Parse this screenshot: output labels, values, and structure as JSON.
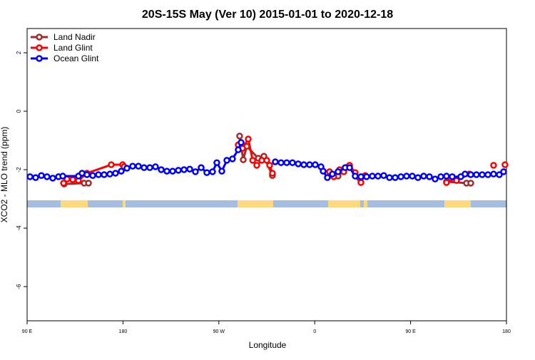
{
  "chart_data": {
    "type": "line",
    "title": "20S-15S May (Ver 10)   2015-01-01 to 2020-12-18",
    "xlabel": "Longitude",
    "ylabel": "XCO2 - MLO trend (ppm)",
    "xlim": [
      90,
      540
    ],
    "xticks": [
      {
        "value": 90,
        "label": "90 E"
      },
      {
        "value": 180,
        "label": "180"
      },
      {
        "value": 270,
        "label": "90 W"
      },
      {
        "value": 360,
        "label": "0"
      },
      {
        "value": 450,
        "label": "90 E"
      },
      {
        "value": 540,
        "label": "180"
      }
    ],
    "ylim": [
      -7.17,
      2.83
    ],
    "yticks": [
      2,
      0,
      -2,
      -4,
      -6
    ],
    "legend": "top-left",
    "series": [
      {
        "name": "Land Nadir",
        "color": "#a52a2a",
        "x": [
          124.8,
          143.6,
          147.6,
          null,
          289.5,
          292.9,
          296.2,
          307.0,
          312.3,
          320.3,
          null,
          381.9,
          391.3,
          402.0,
          null,
          483.7,
          502.5,
          506.5
        ],
        "values": [
          -2.49,
          -2.46,
          -2.46,
          null,
          -0.85,
          -1.66,
          -1.2,
          -1.61,
          -1.54,
          -2.2,
          null,
          -2.22,
          -1.9,
          -2.29,
          null,
          -2.41,
          -2.46,
          -2.46
        ]
      },
      {
        "name": "Land Glint",
        "color": "#ff0000",
        "x": [
          124.2,
          127.5,
          132.9,
          138.2,
          146.2,
          169.0,
          179.7,
          181.0,
          null,
          288.2,
          292.2,
          297.6,
          301.8,
          305.6,
          310.3,
          315.0,
          317.7,
          320.3,
          null,
          373.9,
          377.9,
          383.3,
          387.3,
          392.7,
          398.0,
          403.4,
          407.4,
          null,
          483.7,
          487.7,
          493.1,
          505.2,
          null,
          527.9,
          null,
          538.6
        ],
        "values": [
          -2.46,
          -2.32,
          -2.34,
          -2.37,
          -2.12,
          -1.83,
          -1.83,
          -1.9,
          null,
          -1.15,
          -1.27,
          -0.95,
          -1.68,
          -1.85,
          -1.68,
          -1.68,
          -1.85,
          -2.12,
          null,
          -2.07,
          -2.24,
          -2.0,
          -2.07,
          -1.85,
          -2.1,
          -2.44,
          -2.2,
          null,
          -2.44,
          -2.29,
          -2.37,
          -2.15,
          null,
          -1.85,
          null,
          -1.83
        ]
      },
      {
        "name": "Ocean Glint",
        "color": "#0000ff",
        "x": [
          92.7,
          98.0,
          103.4,
          108.7,
          114.1,
          119.5,
          123.5,
          138.2,
          141.6,
          146.2,
          151.6,
          157.0,
          162.3,
          167.7,
          173.0,
          178.4,
          183.7,
          189.1,
          194.5,
          199.8,
          205.2,
          210.5,
          215.9,
          221.2,
          226.6,
          232.0,
          237.3,
          242.7,
          248.0,
          253.4,
          258.7,
          264.1,
          268.1,
          272.8,
          277.5,
          282.8,
          288.2,
          290.9,
          null,
          323.0,
          328.4,
          333.7,
          339.1,
          344.5,
          349.8,
          355.2,
          360.5,
          365.9,
          367.9,
          371.9,
          376.6,
          381.9,
          388.6,
          392.7,
          398.0,
          403.4,
          408.7,
          414.1,
          419.4,
          424.8,
          430.2,
          435.5,
          440.9,
          446.2,
          451.6,
          456.9,
          462.3,
          467.7,
          473.0,
          478.4,
          483.7,
          489.1,
          497.1,
          501.1,
          506.5,
          511.8,
          517.2,
          522.6,
          527.9,
          533.3,
          537.3
        ],
        "values": [
          -2.24,
          -2.27,
          -2.2,
          -2.24,
          -2.29,
          -2.24,
          -2.22,
          -2.22,
          -2.12,
          -2.17,
          -2.2,
          -2.17,
          -2.17,
          -2.15,
          -2.12,
          -2.05,
          -1.95,
          -1.88,
          -1.88,
          -1.93,
          -1.93,
          -1.9,
          -2.0,
          -2.05,
          -2.05,
          -2.02,
          -2.0,
          -1.98,
          -2.07,
          -1.93,
          -2.1,
          -2.07,
          -1.76,
          -2.05,
          -1.68,
          -1.63,
          -1.32,
          -1.07,
          null,
          -1.73,
          -1.76,
          -1.76,
          -1.76,
          -1.8,
          -1.83,
          -1.83,
          -1.83,
          -1.9,
          -2.05,
          -2.27,
          -2.15,
          -2.07,
          -1.93,
          -1.93,
          -2.22,
          -2.24,
          -2.24,
          -2.22,
          -2.22,
          -2.2,
          -2.27,
          -2.27,
          -2.24,
          -2.22,
          -2.22,
          -2.27,
          -2.22,
          -2.24,
          -2.32,
          -2.24,
          -2.22,
          -2.24,
          -2.24,
          -2.15,
          -2.17,
          -2.17,
          -2.17,
          -2.17,
          -2.15,
          -2.17,
          -2.07
        ]
      }
    ]
  }
}
